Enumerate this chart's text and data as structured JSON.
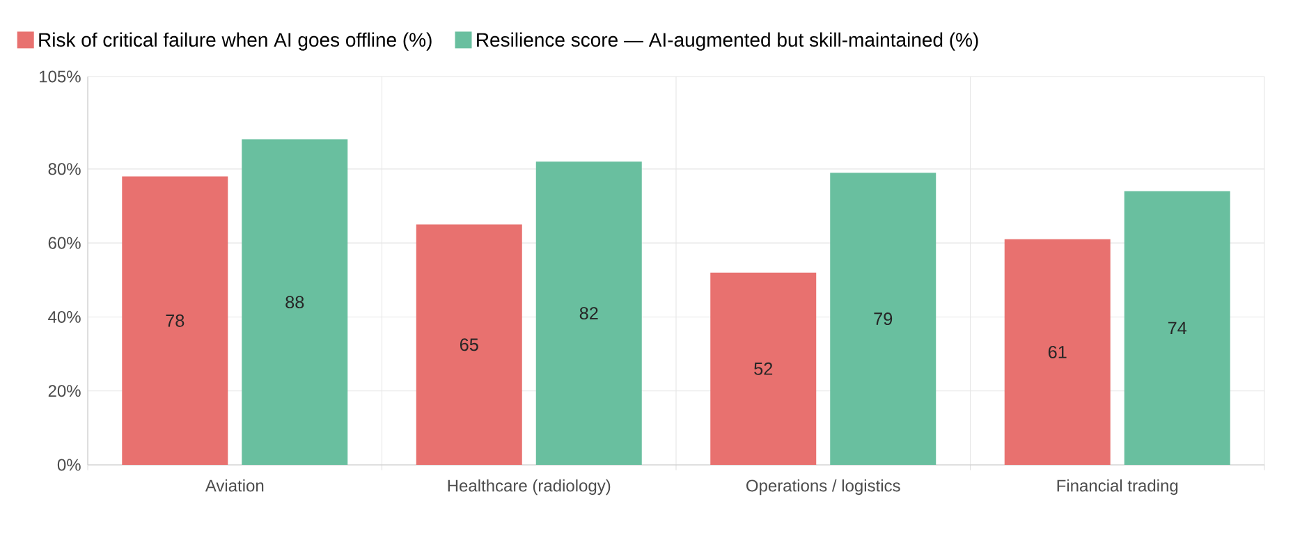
{
  "chart_data": {
    "type": "bar",
    "categories": [
      "Aviation",
      "Healthcare (radiology)",
      "Operations / logistics",
      "Financial trading"
    ],
    "series": [
      {
        "name": "Risk of critical failure when AI goes offline (%)",
        "color": "#e8716f",
        "values": [
          78,
          65,
          52,
          61
        ]
      },
      {
        "name": "Resilience score — AI-augmented but skill-maintained (%)",
        "color": "#69bf9f",
        "values": [
          88,
          82,
          79,
          74
        ]
      }
    ],
    "ylim": [
      0,
      105
    ],
    "yticks": [
      {
        "value": 0,
        "label": "0%"
      },
      {
        "value": 20,
        "label": "20%"
      },
      {
        "value": 40,
        "label": "40%"
      },
      {
        "value": 60,
        "label": "60%"
      },
      {
        "value": 80,
        "label": "80%"
      },
      {
        "value": 105,
        "label": "105%"
      }
    ],
    "grid": true,
    "legend": "top left",
    "data_labels": true
  }
}
